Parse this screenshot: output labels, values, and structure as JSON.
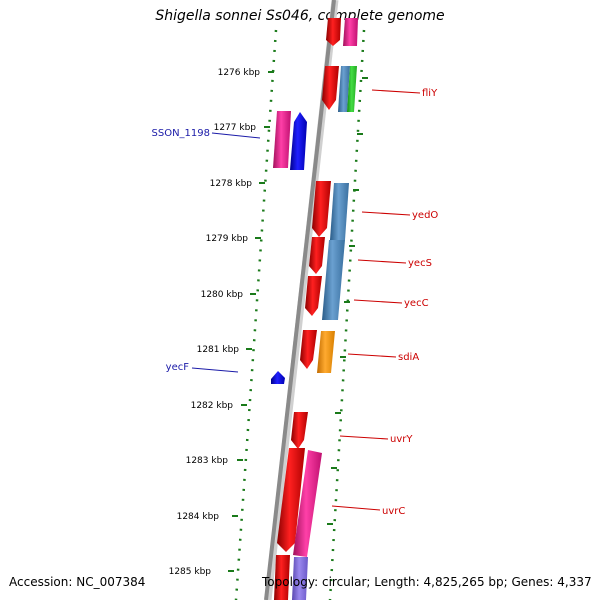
{
  "title": "Shigella sonnei Ss046, complete genome",
  "footer": {
    "accession": "Accession: NC_007384",
    "topology": "Topology: circular; Length: 4,825,265 bp; Genes: 4,337"
  },
  "colors": {
    "backbone": "#8a8a8a",
    "dots": "#1a7a1a",
    "forward_label": "#1a1aa8",
    "reverse_label": "#cc0000"
  },
  "ticks": [
    {
      "label": "1276 kbp"
    },
    {
      "label": "1277 kbp"
    },
    {
      "label": "1278 kbp"
    },
    {
      "label": "1279 kbp"
    },
    {
      "label": "1280 kbp"
    },
    {
      "label": "1281 kbp"
    },
    {
      "label": "1282 kbp"
    },
    {
      "label": "1283 kbp"
    },
    {
      "label": "1284 kbp"
    },
    {
      "label": "1285 kbp"
    }
  ],
  "gene_labels": [
    {
      "name": "SSON_1198",
      "strand": "forward"
    },
    {
      "name": "yecF",
      "strand": "forward"
    },
    {
      "name": "fliY",
      "strand": "reverse"
    },
    {
      "name": "yedO",
      "strand": "reverse"
    },
    {
      "name": "yecS",
      "strand": "reverse"
    },
    {
      "name": "yecC",
      "strand": "reverse"
    },
    {
      "name": "sdiA",
      "strand": "reverse"
    },
    {
      "name": "uvrY",
      "strand": "reverse"
    },
    {
      "name": "uvrC",
      "strand": "reverse"
    }
  ]
}
